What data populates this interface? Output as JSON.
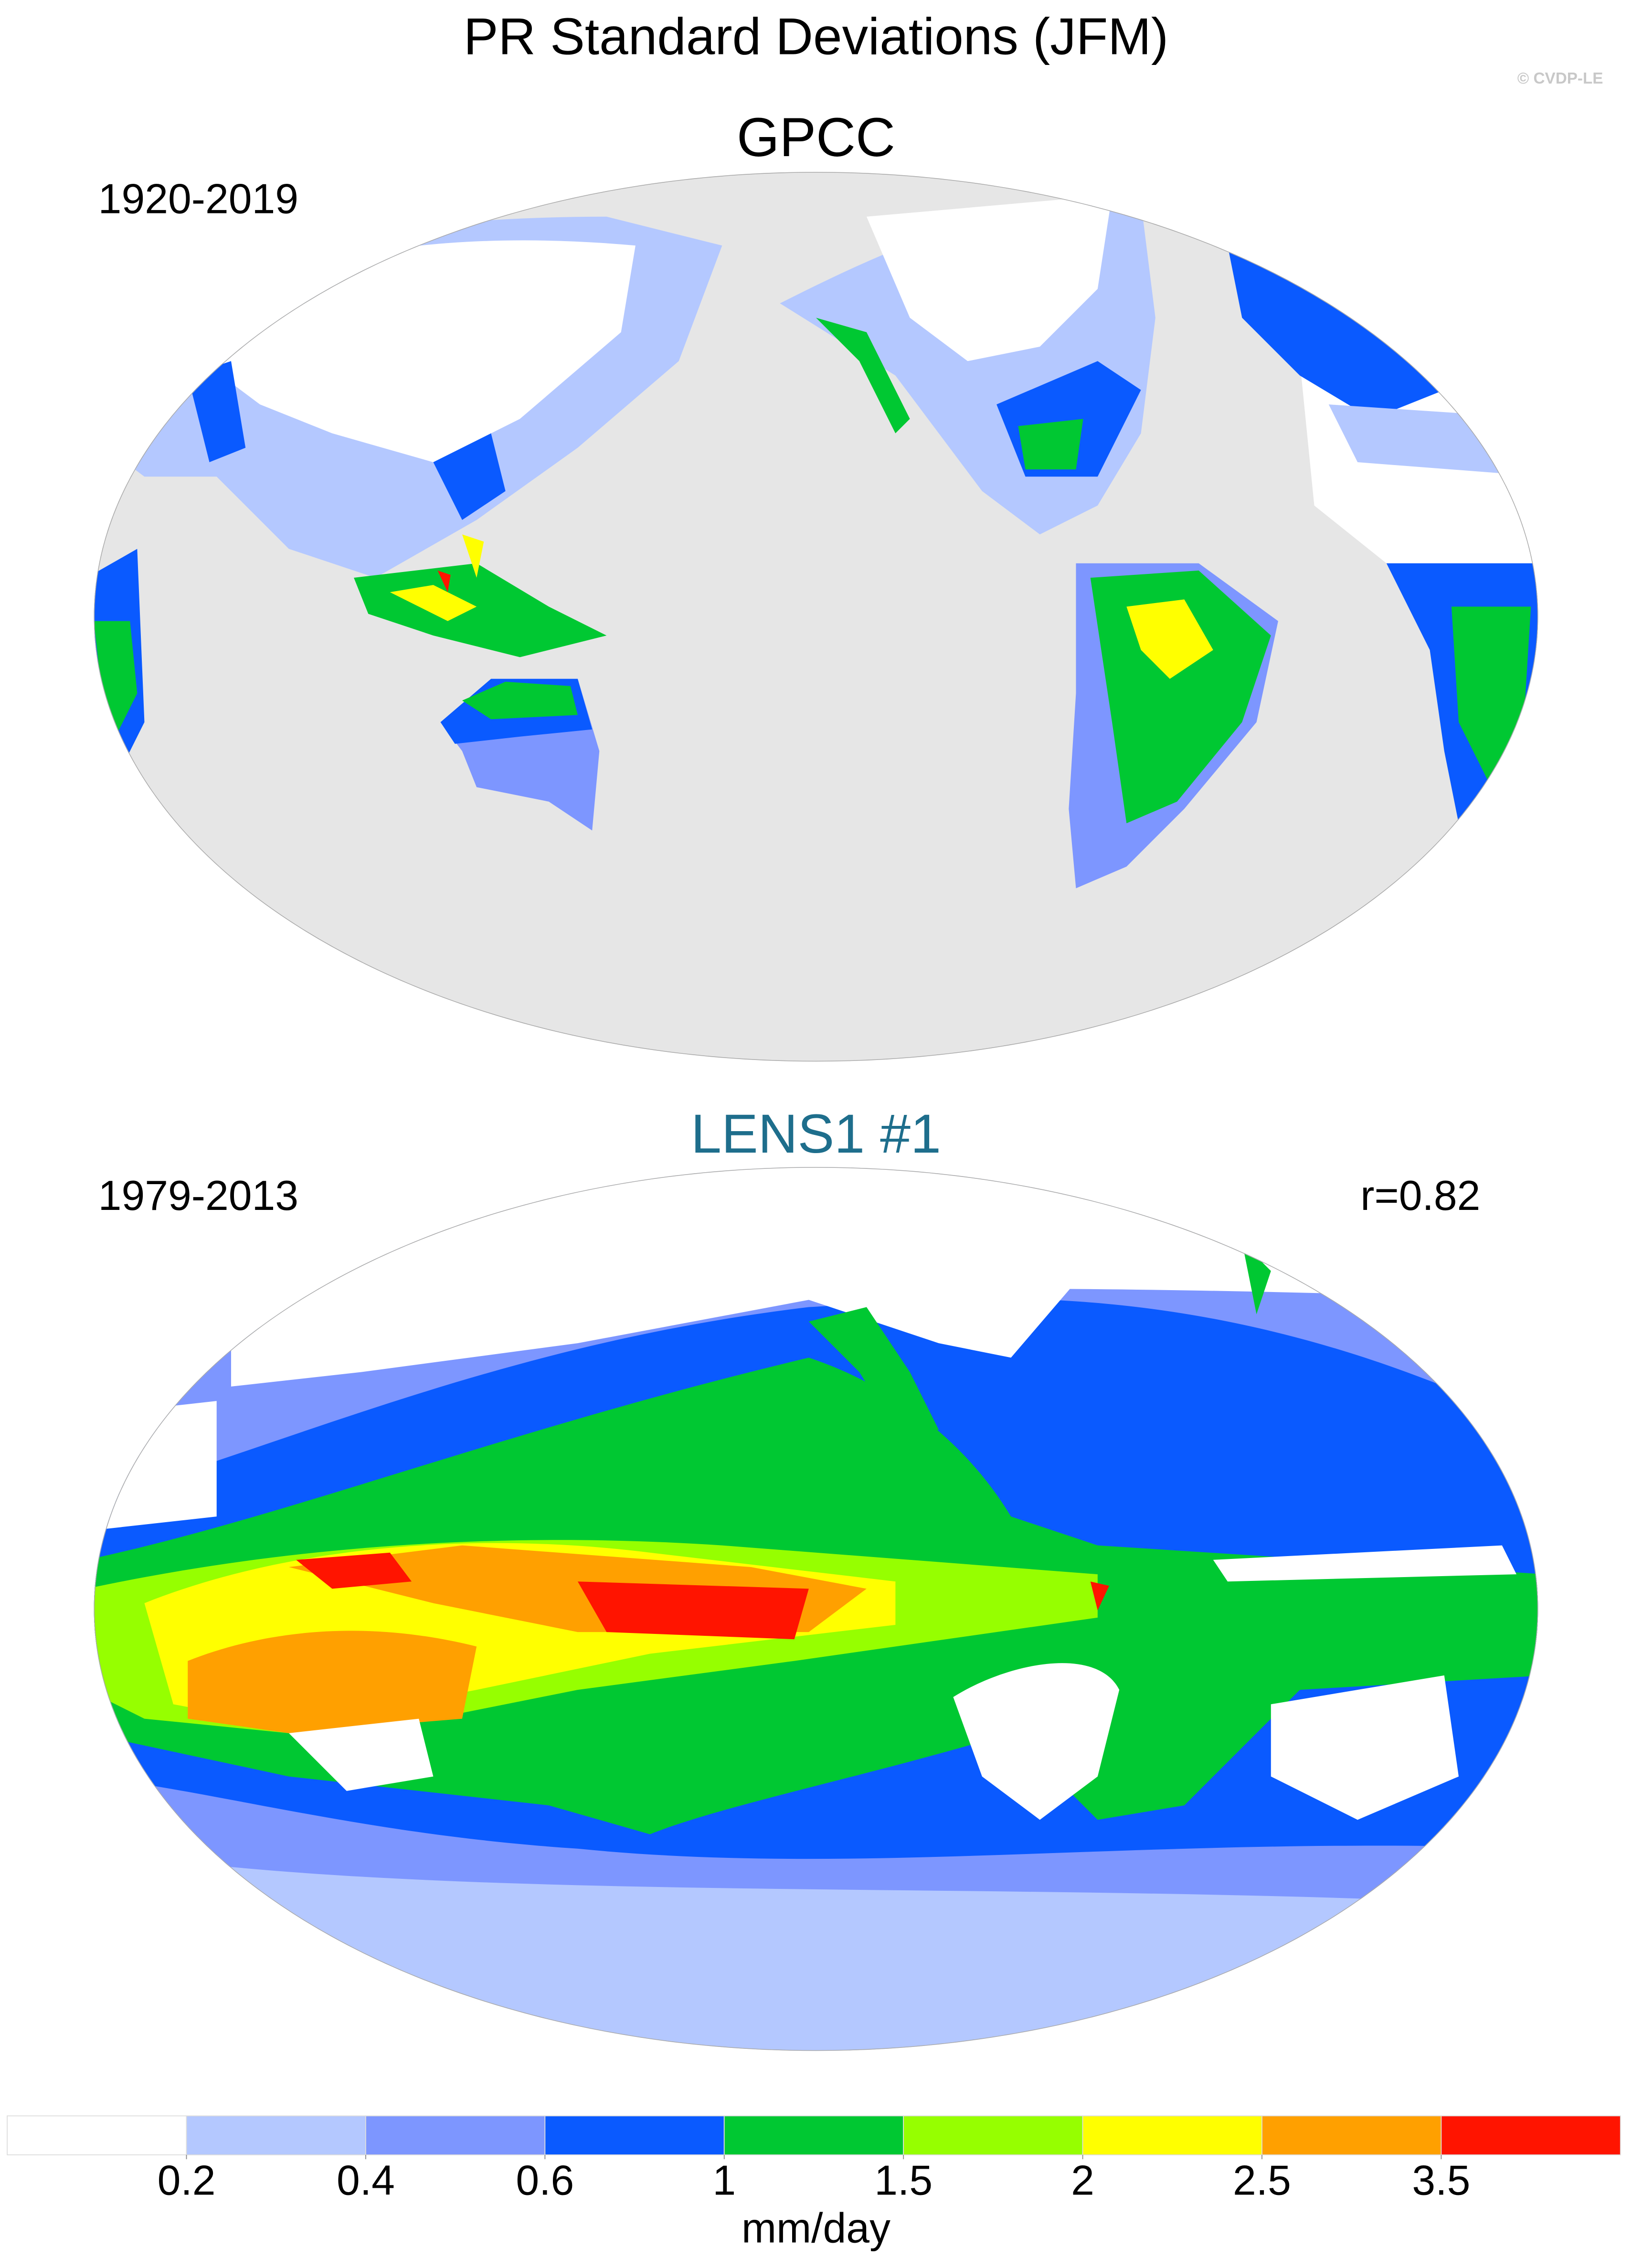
{
  "header": {
    "title": "PR Standard Deviations (JFM)",
    "credit": "© CVDP-LE"
  },
  "panels": [
    {
      "title": "GPCC",
      "period": "1920-2019"
    },
    {
      "title": "LENS1 #1",
      "period": "1979-2013",
      "stat": "r=0.82"
    }
  ],
  "chart_data": {
    "type": "colorbar",
    "levels": [
      0.2,
      0.4,
      0.6,
      1,
      1.5,
      2,
      2.5,
      3.5
    ],
    "colors": [
      "#ffffff",
      "#b4c8ff",
      "#7d96ff",
      "#0a5aff",
      "#00c832",
      "#96ff00",
      "#ffff00",
      "#ffa000",
      "#ff1400"
    ],
    "label": "mm/day"
  }
}
